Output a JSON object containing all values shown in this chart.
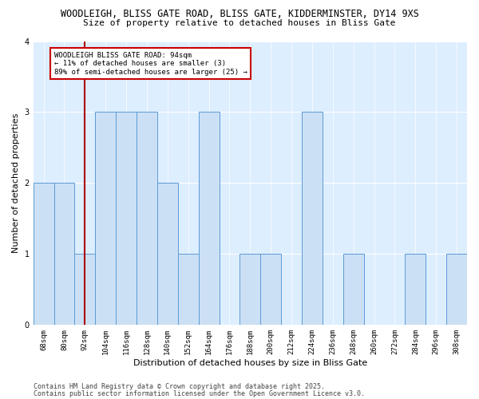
{
  "title_line1": "WOODLEIGH, BLISS GATE ROAD, BLISS GATE, KIDDERMINSTER, DY14 9XS",
  "title_line2": "Size of property relative to detached houses in Bliss Gate",
  "xlabel": "Distribution of detached houses by size in Bliss Gate",
  "ylabel": "Number of detached properties",
  "categories": [
    "68sqm",
    "80sqm",
    "92sqm",
    "104sqm",
    "116sqm",
    "128sqm",
    "140sqm",
    "152sqm",
    "164sqm",
    "176sqm",
    "188sqm",
    "200sqm",
    "212sqm",
    "224sqm",
    "236sqm",
    "248sqm",
    "260sqm",
    "272sqm",
    "284sqm",
    "296sqm",
    "308sqm"
  ],
  "values": [
    2,
    2,
    1,
    3,
    3,
    3,
    2,
    1,
    3,
    0,
    1,
    1,
    0,
    3,
    0,
    1,
    0,
    0,
    1,
    0,
    1
  ],
  "bar_color": "#cce0f5",
  "bar_edge_color": "#5b9bd5",
  "highlight_index": 2,
  "highlight_color": "#aa0000",
  "annotation_text": "WOODLEIGH BLISS GATE ROAD: 94sqm\n← 11% of detached houses are smaller (3)\n89% of semi-detached houses are larger (25) →",
  "annotation_box_color": "#ffffff",
  "annotation_box_edge_color": "#cc0000",
  "ylim": [
    0,
    4
  ],
  "yticks": [
    0,
    1,
    2,
    3,
    4
  ],
  "footer_line1": "Contains HM Land Registry data © Crown copyright and database right 2025.",
  "footer_line2": "Contains public sector information licensed under the Open Government Licence v3.0.",
  "bg_color": "#ddeeff",
  "title_fontsize": 8.5,
  "subtitle_fontsize": 8,
  "axis_label_fontsize": 8,
  "tick_fontsize": 6.5,
  "annotation_fontsize": 6.5,
  "footer_fontsize": 6
}
